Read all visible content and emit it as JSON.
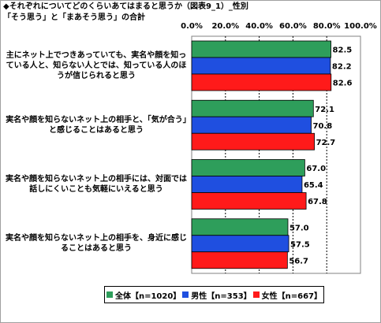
{
  "title": "◆それぞれについてどのくらいあてはまると思うか（図表9_1）_性別",
  "subtitle": "「そう思う」と「まあそう思う」の合計",
  "chart_data": {
    "type": "bar",
    "orientation": "horizontal",
    "xlim": [
      0,
      100
    ],
    "x_ticks": [
      "0.0%",
      "20.0%",
      "40.0%",
      "60.0%",
      "80.0%",
      "100.0%"
    ],
    "categories": [
      "主にネット上でつきあっていても、実名や顔を知っている人と、知らない人とでは、知っている人のほうが信じられると思う",
      "実名や顔を知らないネット上の相手と、「気が合う」と感じることはあると思う",
      "実名や顔を知らないネット上の相手には、対面では話しにくいことも気軽にいえると思う",
      "実名や顔を知らないネット上の相手を、身近に感じることはあると思う"
    ],
    "series": [
      {
        "name": "全体【n=1020】",
        "color": "#2e9e5b",
        "values": [
          82.5,
          72.1,
          67.0,
          57.0
        ],
        "labels": [
          "82.5",
          "72.1",
          "67.0",
          "57.0"
        ]
      },
      {
        "name": "男性【n=353】",
        "color": "#1f4fe0",
        "values": [
          82.2,
          70.8,
          65.4,
          57.5
        ],
        "labels": [
          "82.2",
          "70.8",
          "65.4",
          "57.5"
        ]
      },
      {
        "name": "女性【n=667】",
        "color": "#ff1a1a",
        "values": [
          82.6,
          72.7,
          67.8,
          56.7
        ],
        "labels": [
          "82.6",
          "72.7",
          "67.8",
          "56.7"
        ]
      }
    ],
    "grid": true,
    "legend_position": "bottom"
  }
}
